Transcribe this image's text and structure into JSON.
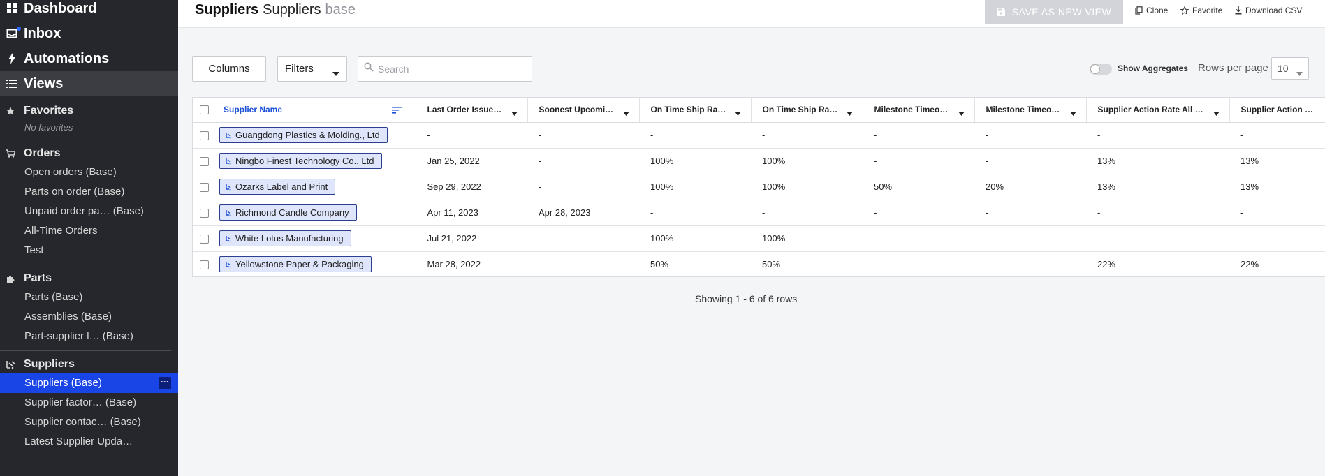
{
  "sidebar": {
    "top_items": [
      {
        "label": "Dashboard",
        "icon": "grid-icon"
      },
      {
        "label": "Inbox",
        "icon": "inbox-icon"
      },
      {
        "label": "Automations",
        "icon": "bolt-icon"
      },
      {
        "label": "Views",
        "icon": "list-icon"
      }
    ],
    "favorites": {
      "title": "Favorites",
      "empty": "No favorites"
    },
    "orders": {
      "title": "Orders",
      "items": [
        "Open orders (Base)",
        "Parts on order (Base)",
        "Unpaid order pa… (Base)",
        "All-Time Orders",
        "Test"
      ]
    },
    "parts": {
      "title": "Parts",
      "items": [
        "Parts (Base)",
        "Assemblies (Base)",
        "Part-supplier l… (Base)"
      ]
    },
    "suppliers": {
      "title": "Suppliers",
      "items": [
        "Suppliers (Base)",
        "Supplier factor… (Base)",
        "Supplier contac… (Base)",
        "Latest Supplier Upda…"
      ],
      "more": "···"
    }
  },
  "header": {
    "title_bold": "Suppliers",
    "title_view": "Suppliers",
    "title_tag": "base",
    "save_label": "SAVE AS NEW VIEW",
    "clone_label": "Clone",
    "favorite_label": "Favorite",
    "download_label": "Download CSV"
  },
  "toolbar": {
    "columns_label": "Columns",
    "filters_label": "Filters",
    "search_placeholder": "Search",
    "aggregates_label": "Show Aggregates",
    "rows_per_page_label": "Rows per page",
    "rows_per_page_value": "10"
  },
  "table": {
    "headers": [
      "Supplier Name",
      "Last Order Issue…",
      "Soonest Upcomi…",
      "On Time Ship Ra…",
      "On Time Ship Ra…",
      "Milestone Timeo…",
      "Milestone Timeo…",
      "Supplier Action Rate All …",
      "Supplier Action …"
    ],
    "rows": [
      [
        "Guangdong Plastics & Molding., Ltd",
        "-",
        "-",
        "-",
        "-",
        "-",
        "-",
        "-",
        "-"
      ],
      [
        "Ningbo Finest Technology Co., Ltd",
        "Jan 25, 2022",
        "-",
        "100%",
        "100%",
        "-",
        "-",
        "13%",
        "13%"
      ],
      [
        "Ozarks Label and Print",
        "Sep 29, 2022",
        "-",
        "100%",
        "100%",
        "50%",
        "20%",
        "13%",
        "13%"
      ],
      [
        "Richmond Candle Company",
        "Apr 11, 2023",
        "Apr 28, 2023",
        "-",
        "-",
        "-",
        "-",
        "-",
        "-"
      ],
      [
        "White Lotus Manufacturing",
        "Jul 21, 2022",
        "-",
        "100%",
        "100%",
        "-",
        "-",
        "-",
        "-"
      ],
      [
        "Yellowstone Paper & Packaging",
        "Mar 28, 2022",
        "-",
        "50%",
        "50%",
        "-",
        "-",
        "22%",
        "22%"
      ]
    ]
  },
  "footer": {
    "showing": "Showing 1 - 6 of 6 rows"
  },
  "colors": {
    "accent": "#1a45e6",
    "sidebar_bg": "#25272c",
    "chip_bg": "#dfe6fb",
    "link": "#1a4fd8"
  }
}
